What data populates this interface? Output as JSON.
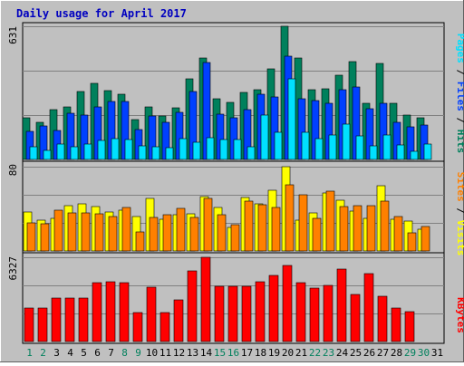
{
  "title": "Daily usage for April 2017",
  "colors": {
    "frame_bg": "#c0c0c0",
    "title": "#0000c0",
    "hits": "#00805c",
    "files": "#0040ff",
    "pages": "#00e0ff",
    "visits": "#ffff00",
    "sites": "#ff8000",
    "kbytes": "#ff0000",
    "weekend_day": "#00805c",
    "weekday": "#000000"
  },
  "legend": {
    "pages": "Pages",
    "files": "Files",
    "hits": "Hits",
    "sep": " / ",
    "visits": "Visits",
    "sites": "Sites",
    "kbytes": "KBytes"
  },
  "axis_max": {
    "hits_panel": "631",
    "visits_panel": "80",
    "kbytes_panel": "6327"
  },
  "chart_data": {
    "type": "bar",
    "title": "Daily usage for April 2017",
    "categories": [
      "1",
      "2",
      "3",
      "4",
      "5",
      "6",
      "7",
      "8",
      "9",
      "10",
      "11",
      "12",
      "13",
      "14",
      "15",
      "16",
      "17",
      "18",
      "19",
      "20",
      "21",
      "22",
      "23",
      "24",
      "25",
      "26",
      "27",
      "28",
      "29",
      "30",
      "31"
    ],
    "weekend_days": [
      "1",
      "2",
      "8",
      "9",
      "15",
      "16",
      "22",
      "23",
      "29",
      "30"
    ],
    "panels": [
      {
        "name": "hits",
        "ymax": 631,
        "series": [
          {
            "name": "Hits",
            "values": [
              198,
              176,
              234,
              251,
              322,
              359,
              326,
              309,
              190,
              251,
              206,
              244,
              380,
              481,
              288,
              272,
              318,
              329,
              431,
              631,
              479,
              331,
              334,
              401,
              464,
              267,
              457,
              268,
              210,
              197,
              0
            ]
          },
          {
            "name": "Files",
            "values": [
              135,
              159,
              138,
              219,
              212,
              251,
              276,
              274,
              143,
              205,
              177,
              224,
              321,
              458,
              214,
              199,
              236,
              308,
              295,
              488,
              286,
              277,
              265,
              332,
              344,
              239,
              265,
              176,
              154,
              162,
              0
            ]
          },
          {
            "name": "Pages",
            "values": [
              62,
              42,
              75,
              60,
              71,
              88,
              98,
              95,
              64,
              62,
              57,
              100,
              83,
              102,
              94,
              93,
              61,
              211,
              129,
              384,
              127,
              99,
              116,
              166,
              110,
              64,
              117,
              70,
              38,
              71,
              0
            ]
          }
        ]
      },
      {
        "name": "visits",
        "ymax": 80,
        "series": [
          {
            "name": "Visits",
            "values": [
              37,
              29,
              31,
              43,
              45,
              42,
              37,
              39,
              33,
              50,
              30,
              34,
              35,
              52,
              41,
              22,
              51,
              45,
              58,
              80,
              29,
              36,
              55,
              48,
              38,
              31,
              62,
              30,
              28,
              21,
              0
            ]
          },
          {
            "name": "Sites",
            "values": [
              27,
              26,
              39,
              36,
              36,
              35,
              33,
              41,
              18,
              32,
              34,
              40,
              32,
              50,
              34,
              25,
              47,
              44,
              41,
              63,
              53,
              31,
              57,
              42,
              43,
              43,
              47,
              33,
              17,
              23,
              0
            ]
          }
        ]
      },
      {
        "name": "kbytes",
        "ymax": 6327,
        "series": [
          {
            "name": "KBytes",
            "values": [
              2520,
              2520,
              3290,
              3290,
              3290,
              4410,
              4480,
              4410,
              2190,
              4060,
              2190,
              3150,
              5320,
              6327,
              4130,
              4130,
              4130,
              4480,
              4970,
              5740,
              4410,
              3990,
              4200,
              5460,
              3570,
              5110,
              3430,
              2520,
              2240,
              0,
              0
            ]
          }
        ]
      }
    ]
  }
}
